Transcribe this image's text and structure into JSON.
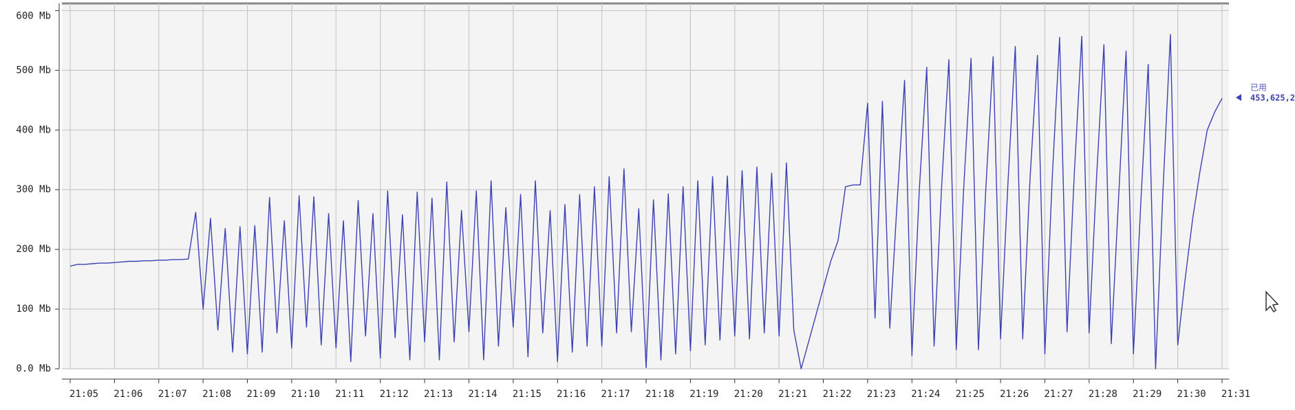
{
  "chart_data": {
    "type": "line",
    "categories": [
      "21:05",
      null,
      null,
      null,
      null,
      null,
      "21:06",
      null,
      null,
      null,
      null,
      null,
      "21:07",
      null,
      null,
      null,
      null,
      null,
      "21:08",
      null,
      null,
      null,
      null,
      null,
      "21:09",
      null,
      null,
      null,
      null,
      null,
      "21:10",
      null,
      null,
      null,
      null,
      null,
      "21:11",
      null,
      null,
      null,
      null,
      null,
      "21:12",
      null,
      null,
      null,
      null,
      null,
      "21:13",
      null,
      null,
      null,
      null,
      null,
      "21:14",
      null,
      null,
      null,
      null,
      null,
      "21:15",
      null,
      null,
      null,
      null,
      null,
      "21:16",
      null,
      null,
      null,
      null,
      null,
      "21:17",
      null,
      null,
      null,
      null,
      null,
      "21:18",
      null,
      null,
      null,
      null,
      null,
      "21:19",
      null,
      null,
      null,
      null,
      null,
      "21:20",
      null,
      null,
      null,
      null,
      null,
      "21:21",
      null,
      null,
      null,
      null,
      null,
      "21:22",
      null,
      null,
      null,
      null,
      null,
      "21:23",
      null,
      null,
      null,
      null,
      null,
      "21:24",
      null,
      null,
      null,
      null,
      null,
      "21:25",
      null,
      null,
      null,
      null,
      null,
      "21:26",
      null,
      null,
      null,
      null,
      null,
      "21:27",
      null,
      null,
      null,
      null,
      null,
      "21:28",
      null,
      null,
      null,
      null,
      null,
      "21:29",
      null,
      null,
      null,
      null,
      null,
      "21:30",
      null,
      null,
      null,
      null,
      null,
      "21:31"
    ],
    "series": [
      {
        "name": "已用",
        "color": "#3b40b4",
        "values": [
          172,
          175,
          175,
          176,
          177,
          177,
          178,
          179,
          180,
          180,
          181,
          181,
          182,
          182,
          183,
          183,
          184,
          262,
          100,
          252,
          65,
          235,
          28,
          238,
          25,
          240,
          28,
          287,
          60,
          248,
          35,
          290,
          70,
          288,
          40,
          260,
          35,
          248,
          12,
          282,
          55,
          260,
          18,
          298,
          52,
          258,
          15,
          296,
          45,
          286,
          15,
          313,
          45,
          265,
          62,
          298,
          15,
          315,
          38,
          270,
          70,
          292,
          20,
          315,
          60,
          265,
          12,
          275,
          28,
          292,
          38,
          305,
          38,
          322,
          60,
          335,
          62,
          268,
          2,
          283,
          15,
          293,
          25,
          305,
          30,
          315,
          40,
          322,
          48,
          323,
          55,
          332,
          50,
          338,
          60,
          328,
          55,
          345,
          65,
          0,
          45,
          90,
          135,
          180,
          215,
          305,
          308,
          308,
          445,
          85,
          448,
          68,
          280,
          483,
          22,
          300,
          505,
          38,
          300,
          518,
          32,
          300,
          520,
          32,
          300,
          523,
          50,
          310,
          540,
          50,
          320,
          525,
          25,
          320,
          555,
          62,
          330,
          557,
          60,
          320,
          543,
          42,
          290,
          532,
          25,
          280,
          510,
          0,
          300,
          560,
          40,
          150,
          250,
          330,
          400,
          430,
          453
        ]
      }
    ],
    "annotation": "453,625,2",
    "ylim": [
      0,
      612
    ],
    "yticks": [
      {
        "value": 0,
        "label": "0.0 Mb"
      },
      {
        "value": 100,
        "label": "100 Mb"
      },
      {
        "value": 200,
        "label": "200 Mb"
      },
      {
        "value": 300,
        "label": "300 Mb"
      },
      {
        "value": 400,
        "label": "400 Mb"
      },
      {
        "value": 500,
        "label": "500 Mb"
      },
      {
        "value": 600,
        "label": "600 Mb"
      }
    ],
    "grid": true
  }
}
